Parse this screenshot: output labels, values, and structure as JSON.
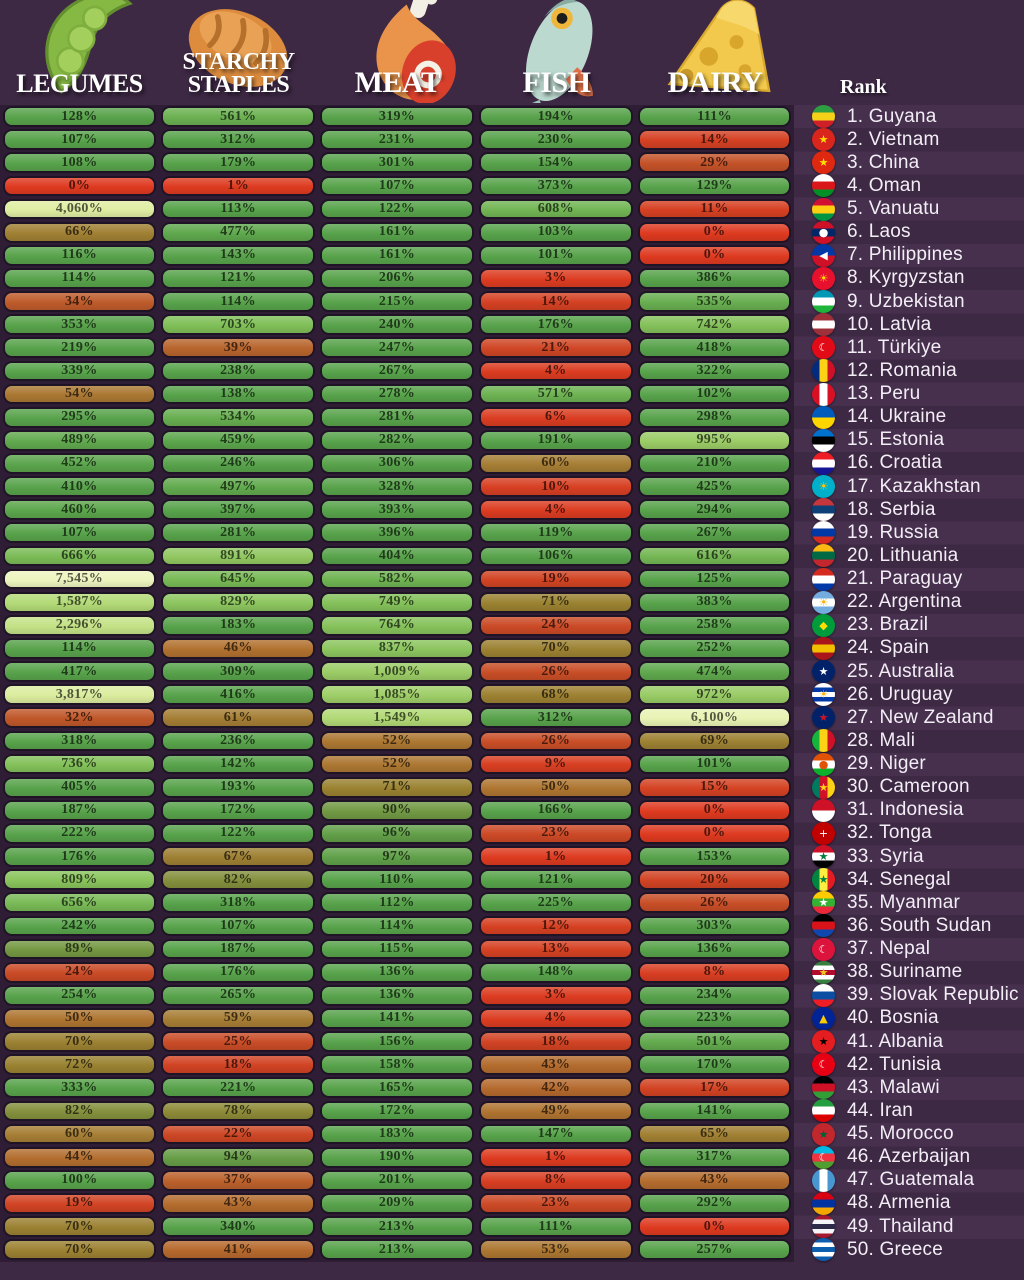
{
  "rank_header": "Rank",
  "theme": {
    "page_bg": "#3e2945",
    "grid_bg": "#2e1d35",
    "stripe_light": "#46304e",
    "stripe_dark": "#3e2945",
    "cell_outline": "#1f1426",
    "header_text": "#ffffff",
    "rank_text": "#f3eef5"
  },
  "color_scale": [
    {
      "value": 0,
      "color": "#de3a20"
    },
    {
      "value": 20,
      "color": "#d04424"
    },
    {
      "value": 30,
      "color": "#c25429"
    },
    {
      "value": 45,
      "color": "#b2702f"
    },
    {
      "value": 60,
      "color": "#a67e35"
    },
    {
      "value": 72,
      "color": "#998231"
    },
    {
      "value": 85,
      "color": "#7e9440"
    },
    {
      "value": 100,
      "color": "#58a34b"
    },
    {
      "value": 430,
      "color": "#58a34b"
    },
    {
      "value": 700,
      "color": "#80bf58"
    },
    {
      "value": 1000,
      "color": "#9bcc66"
    },
    {
      "value": 1600,
      "color": "#b4da77"
    },
    {
      "value": 2600,
      "color": "#cbe58c"
    },
    {
      "value": 4200,
      "color": "#e2efa5"
    },
    {
      "value": 8000,
      "color": "#f0f6c2"
    }
  ],
  "chart_data": {
    "type": "heatmap",
    "unit": "%",
    "rank_label": "Rank",
    "columns": [
      {
        "label": "LEGUMES",
        "icon": "peas-icon"
      },
      {
        "label": "STARCHY STAPLES",
        "icon": "bread-icon"
      },
      {
        "label": "MEAT",
        "icon": "ham-icon"
      },
      {
        "label": "FISH",
        "icon": "fish-icon"
      },
      {
        "label": "DAIRY",
        "icon": "cheese-icon"
      }
    ],
    "rows": [
      {
        "rank": 1,
        "country": "Guyana",
        "values": [
          128,
          561,
          319,
          194,
          111
        ],
        "flag": {
          "d": "h",
          "c": [
            "#2f9e41",
            "#f5d018",
            "#cf2027"
          ]
        }
      },
      {
        "rank": 2,
        "country": "Vietnam",
        "values": [
          107,
          312,
          231,
          230,
          14
        ],
        "flag": {
          "d": "h",
          "c": [
            "#da251d",
            "#da251d"
          ],
          "e": "★",
          "ec": "#ffde00"
        }
      },
      {
        "rank": 3,
        "country": "China",
        "values": [
          108,
          179,
          301,
          154,
          29
        ],
        "flag": {
          "d": "h",
          "c": [
            "#de2910",
            "#de2910"
          ],
          "e": "★",
          "ec": "#ffde00"
        }
      },
      {
        "rank": 4,
        "country": "Oman",
        "values": [
          0,
          1,
          107,
          373,
          129
        ],
        "flag": {
          "d": "h",
          "c": [
            "#ffffff",
            "#db161b",
            "#009025"
          ]
        }
      },
      {
        "rank": 5,
        "country": "Vanuatu",
        "values": [
          4060,
          113,
          122,
          608,
          11
        ],
        "flag": {
          "d": "h",
          "c": [
            "#d21034",
            "#fdce12",
            "#009543"
          ]
        }
      },
      {
        "rank": 6,
        "country": "Laos",
        "values": [
          66,
          477,
          161,
          103,
          0
        ],
        "flag": {
          "d": "h",
          "c": [
            "#ce1126",
            "#002868",
            "#ce1126"
          ],
          "e": "●",
          "ec": "#ffffff"
        }
      },
      {
        "rank": 7,
        "country": "Philippines",
        "values": [
          116,
          143,
          161,
          101,
          0
        ],
        "flag": {
          "d": "h",
          "c": [
            "#0038a8",
            "#ce1126"
          ],
          "e": "◀",
          "ec": "#ffffff"
        }
      },
      {
        "rank": 8,
        "country": "Kyrgyzstan",
        "values": [
          114,
          121,
          206,
          3,
          386
        ],
        "flag": {
          "d": "h",
          "c": [
            "#e8112d",
            "#e8112d"
          ],
          "e": "☀",
          "ec": "#ffde00"
        }
      },
      {
        "rank": 9,
        "country": "Uzbekistan",
        "values": [
          34,
          114,
          215,
          14,
          535
        ],
        "flag": {
          "d": "h",
          "c": [
            "#0099b5",
            "#ffffff",
            "#1eb53a"
          ]
        }
      },
      {
        "rank": 10,
        "country": "Latvia",
        "values": [
          353,
          703,
          240,
          176,
          742
        ],
        "flag": {
          "d": "h",
          "c": [
            "#9e3039",
            "#ffffff",
            "#9e3039"
          ]
        }
      },
      {
        "rank": 11,
        "country": "Türkiye",
        "values": [
          219,
          39,
          247,
          21,
          418
        ],
        "flag": {
          "d": "h",
          "c": [
            "#e30a17",
            "#e30a17"
          ],
          "e": "☾",
          "ec": "#ffffff"
        }
      },
      {
        "rank": 12,
        "country": "Romania",
        "values": [
          339,
          238,
          267,
          4,
          322
        ],
        "flag": {
          "d": "v",
          "c": [
            "#002b7f",
            "#fcd116",
            "#ce1126"
          ]
        }
      },
      {
        "rank": 13,
        "country": "Peru",
        "values": [
          54,
          138,
          278,
          571,
          102
        ],
        "flag": {
          "d": "v",
          "c": [
            "#d91023",
            "#ffffff",
            "#d91023"
          ]
        }
      },
      {
        "rank": 14,
        "country": "Ukraine",
        "values": [
          295,
          534,
          281,
          6,
          298
        ],
        "flag": {
          "d": "h",
          "c": [
            "#005bbb",
            "#ffd500"
          ]
        }
      },
      {
        "rank": 15,
        "country": "Estonia",
        "values": [
          489,
          459,
          282,
          191,
          995
        ],
        "flag": {
          "d": "h",
          "c": [
            "#0072ce",
            "#000000",
            "#ffffff"
          ]
        }
      },
      {
        "rank": 16,
        "country": "Croatia",
        "values": [
          452,
          246,
          306,
          60,
          210
        ],
        "flag": {
          "d": "h",
          "c": [
            "#ee1c25",
            "#ffffff",
            "#171796"
          ]
        }
      },
      {
        "rank": 17,
        "country": "Kazakhstan",
        "values": [
          410,
          497,
          328,
          10,
          425
        ],
        "flag": {
          "d": "h",
          "c": [
            "#00afca",
            "#00afca"
          ],
          "e": "☀",
          "ec": "#fec50c"
        }
      },
      {
        "rank": 18,
        "country": "Serbia",
        "values": [
          460,
          397,
          393,
          4,
          294
        ],
        "flag": {
          "d": "h",
          "c": [
            "#c6363c",
            "#0c4076",
            "#ffffff"
          ]
        }
      },
      {
        "rank": 19,
        "country": "Russia",
        "values": [
          107,
          281,
          396,
          119,
          267
        ],
        "flag": {
          "d": "h",
          "c": [
            "#ffffff",
            "#0039a6",
            "#d52b1e"
          ]
        }
      },
      {
        "rank": 20,
        "country": "Lithuania",
        "values": [
          666,
          891,
          404,
          106,
          616
        ],
        "flag": {
          "d": "h",
          "c": [
            "#fdb913",
            "#006a44",
            "#c1272d"
          ]
        }
      },
      {
        "rank": 21,
        "country": "Paraguay",
        "values": [
          7545,
          645,
          582,
          19,
          125
        ],
        "flag": {
          "d": "h",
          "c": [
            "#d52b1e",
            "#ffffff",
            "#0038a8"
          ]
        }
      },
      {
        "rank": 22,
        "country": "Argentina",
        "values": [
          1587,
          829,
          749,
          71,
          383
        ],
        "flag": {
          "d": "h",
          "c": [
            "#74acdf",
            "#ffffff",
            "#74acdf"
          ],
          "e": "☀",
          "ec": "#f6b40e"
        }
      },
      {
        "rank": 23,
        "country": "Brazil",
        "values": [
          2296,
          183,
          764,
          24,
          258
        ],
        "flag": {
          "d": "h",
          "c": [
            "#009c3b",
            "#009c3b"
          ],
          "e": "◆",
          "ec": "#ffdf00"
        }
      },
      {
        "rank": 24,
        "country": "Spain",
        "values": [
          114,
          46,
          837,
          70,
          252
        ],
        "flag": {
          "d": "h",
          "c": [
            "#aa151b",
            "#f1bf00",
            "#aa151b"
          ]
        }
      },
      {
        "rank": 25,
        "country": "Australia",
        "values": [
          417,
          309,
          1009,
          26,
          474
        ],
        "flag": {
          "d": "h",
          "c": [
            "#012169",
            "#012169"
          ],
          "e": "★",
          "ec": "#ffffff"
        }
      },
      {
        "rank": 26,
        "country": "Uruguay",
        "values": [
          3817,
          416,
          1085,
          68,
          972
        ],
        "flag": {
          "d": "h",
          "c": [
            "#ffffff",
            "#0038a8",
            "#ffffff",
            "#0038a8",
            "#ffffff"
          ],
          "e": "☀",
          "ec": "#f6b40e"
        }
      },
      {
        "rank": 27,
        "country": "New Zealand",
        "values": [
          32,
          61,
          1549,
          312,
          6100
        ],
        "flag": {
          "d": "h",
          "c": [
            "#012169",
            "#012169"
          ],
          "e": "★",
          "ec": "#cc142b"
        }
      },
      {
        "rank": 28,
        "country": "Mali",
        "values": [
          318,
          236,
          52,
          26,
          69
        ],
        "flag": {
          "d": "v",
          "c": [
            "#14b53a",
            "#fcd116",
            "#ce1126"
          ]
        }
      },
      {
        "rank": 29,
        "country": "Niger",
        "values": [
          736,
          142,
          52,
          9,
          101
        ],
        "flag": {
          "d": "h",
          "c": [
            "#e05206",
            "#ffffff",
            "#0db02b"
          ],
          "e": "●",
          "ec": "#e05206"
        }
      },
      {
        "rank": 30,
        "country": "Cameroon",
        "values": [
          405,
          193,
          71,
          50,
          15
        ],
        "flag": {
          "d": "v",
          "c": [
            "#007a5e",
            "#ce1126",
            "#fcd116"
          ],
          "e": "★",
          "ec": "#fcd116"
        }
      },
      {
        "rank": 31,
        "country": "Indonesia",
        "values": [
          187,
          172,
          90,
          166,
          0
        ],
        "flag": {
          "d": "h",
          "c": [
            "#ce1126",
            "#ffffff"
          ]
        }
      },
      {
        "rank": 32,
        "country": "Tonga",
        "values": [
          222,
          122,
          96,
          23,
          0
        ],
        "flag": {
          "d": "h",
          "c": [
            "#c10000",
            "#c10000"
          ],
          "e": "+",
          "ec": "#ffffff"
        }
      },
      {
        "rank": 33,
        "country": "Syria",
        "values": [
          176,
          67,
          97,
          1,
          153
        ],
        "flag": {
          "d": "h",
          "c": [
            "#ce1126",
            "#ffffff",
            "#000000"
          ],
          "e": "★",
          "ec": "#007a3d"
        }
      },
      {
        "rank": 34,
        "country": "Senegal",
        "values": [
          809,
          82,
          110,
          121,
          20
        ],
        "flag": {
          "d": "v",
          "c": [
            "#00853f",
            "#fdef42",
            "#e31b23"
          ],
          "e": "★",
          "ec": "#00853f"
        }
      },
      {
        "rank": 35,
        "country": "Myanmar",
        "values": [
          656,
          318,
          112,
          225,
          26
        ],
        "flag": {
          "d": "h",
          "c": [
            "#fecb00",
            "#34b233",
            "#ea2839"
          ],
          "e": "★",
          "ec": "#ffffff"
        }
      },
      {
        "rank": 36,
        "country": "South Sudan",
        "values": [
          242,
          107,
          114,
          12,
          303
        ],
        "flag": {
          "d": "h",
          "c": [
            "#000000",
            "#da121a",
            "#0f47af"
          ]
        }
      },
      {
        "rank": 37,
        "country": "Nepal",
        "values": [
          89,
          187,
          115,
          13,
          136
        ],
        "flag": {
          "d": "h",
          "c": [
            "#dc143c",
            "#dc143c"
          ],
          "e": "☾",
          "ec": "#ffffff"
        }
      },
      {
        "rank": 38,
        "country": "Suriname",
        "values": [
          24,
          176,
          136,
          148,
          8
        ],
        "flag": {
          "d": "h",
          "c": [
            "#377e3f",
            "#ffffff",
            "#b40a2d",
            "#ffffff",
            "#377e3f"
          ],
          "e": "★",
          "ec": "#ecc81d"
        }
      },
      {
        "rank": 39,
        "country": "Slovak Republic",
        "values": [
          254,
          265,
          136,
          3,
          234
        ],
        "flag": {
          "d": "h",
          "c": [
            "#ffffff",
            "#0b4ea2",
            "#ee1c25"
          ]
        }
      },
      {
        "rank": 40,
        "country": "Bosnia",
        "values": [
          50,
          59,
          141,
          4,
          223
        ],
        "flag": {
          "d": "h",
          "c": [
            "#002395",
            "#002395"
          ],
          "e": "▲",
          "ec": "#fecb00"
        }
      },
      {
        "rank": 41,
        "country": "Albania",
        "values": [
          70,
          25,
          156,
          18,
          501
        ],
        "flag": {
          "d": "h",
          "c": [
            "#e41e20",
            "#e41e20"
          ],
          "e": "★",
          "ec": "#000000"
        }
      },
      {
        "rank": 42,
        "country": "Tunisia",
        "values": [
          72,
          18,
          158,
          43,
          170
        ],
        "flag": {
          "d": "h",
          "c": [
            "#e70013",
            "#e70013"
          ],
          "e": "☾",
          "ec": "#ffffff"
        }
      },
      {
        "rank": 43,
        "country": "Malawi",
        "values": [
          333,
          221,
          165,
          42,
          17
        ],
        "flag": {
          "d": "h",
          "c": [
            "#000000",
            "#ce1126",
            "#339e35"
          ],
          "e": "☀",
          "ec": "#ce1126"
        }
      },
      {
        "rank": 44,
        "country": "Iran",
        "values": [
          82,
          78,
          172,
          49,
          141
        ],
        "flag": {
          "d": "h",
          "c": [
            "#239f40",
            "#ffffff",
            "#da0000"
          ]
        }
      },
      {
        "rank": 45,
        "country": "Morocco",
        "values": [
          60,
          22,
          183,
          147,
          65
        ],
        "flag": {
          "d": "h",
          "c": [
            "#c1272d",
            "#c1272d"
          ],
          "e": "★",
          "ec": "#006233"
        }
      },
      {
        "rank": 46,
        "country": "Azerbaijan",
        "values": [
          44,
          94,
          190,
          1,
          317
        ],
        "flag": {
          "d": "h",
          "c": [
            "#00b9e4",
            "#ef3340",
            "#509e2f"
          ],
          "e": "☾",
          "ec": "#ffffff"
        }
      },
      {
        "rank": 47,
        "country": "Guatemala",
        "values": [
          100,
          37,
          201,
          8,
          43
        ],
        "flag": {
          "d": "v",
          "c": [
            "#4997d0",
            "#ffffff",
            "#4997d0"
          ]
        }
      },
      {
        "rank": 48,
        "country": "Armenia",
        "values": [
          19,
          43,
          209,
          23,
          292
        ],
        "flag": {
          "d": "h",
          "c": [
            "#d90012",
            "#0033a0",
            "#f2a800"
          ]
        }
      },
      {
        "rank": 49,
        "country": "Thailand",
        "values": [
          70,
          340,
          213,
          111,
          0
        ],
        "flag": {
          "d": "h",
          "c": [
            "#a51931",
            "#f4f5f8",
            "#2d2a4a",
            "#f4f5f8",
            "#a51931"
          ]
        }
      },
      {
        "rank": 50,
        "country": "Greece",
        "values": [
          70,
          41,
          213,
          53,
          257
        ],
        "flag": {
          "d": "h",
          "c": [
            "#0d5eaf",
            "#ffffff",
            "#0d5eaf",
            "#ffffff",
            "#0d5eaf"
          ]
        }
      }
    ]
  }
}
